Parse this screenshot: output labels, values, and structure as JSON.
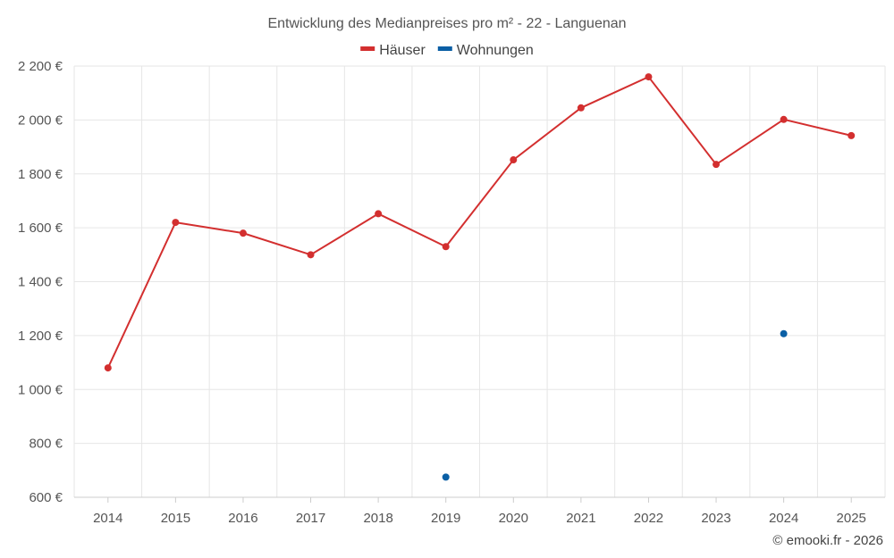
{
  "chart_data": {
    "type": "line",
    "title": "Entwicklung des Medianpreises pro m² - 22 - Languenan",
    "xlabel": "",
    "ylabel": "",
    "x": [
      "2014",
      "2015",
      "2016",
      "2017",
      "2018",
      "2019",
      "2020",
      "2021",
      "2022",
      "2023",
      "2024",
      "2025"
    ],
    "ylim": [
      600,
      2200
    ],
    "yticks": [
      600,
      800,
      1000,
      1200,
      1400,
      1600,
      1800,
      2000,
      2200
    ],
    "ytick_labels": [
      "600 €",
      "800 €",
      "1 000 €",
      "1 200 €",
      "1 400 €",
      "1 600 €",
      "1 800 €",
      "2 000 €",
      "2 200 €"
    ],
    "grid": true,
    "legend_position": "top",
    "series": [
      {
        "name": "Häuser",
        "color": "#d32f2f",
        "values": [
          1080,
          1620,
          1580,
          1500,
          1652,
          1530,
          1852,
          2045,
          2160,
          1835,
          2002,
          1942
        ]
      },
      {
        "name": "Wohnungen",
        "color": "#0a5fa5",
        "values": [
          null,
          null,
          null,
          null,
          null,
          675,
          null,
          null,
          null,
          null,
          1207,
          null
        ]
      }
    ]
  },
  "credit": "© emooki.fr - 2026"
}
